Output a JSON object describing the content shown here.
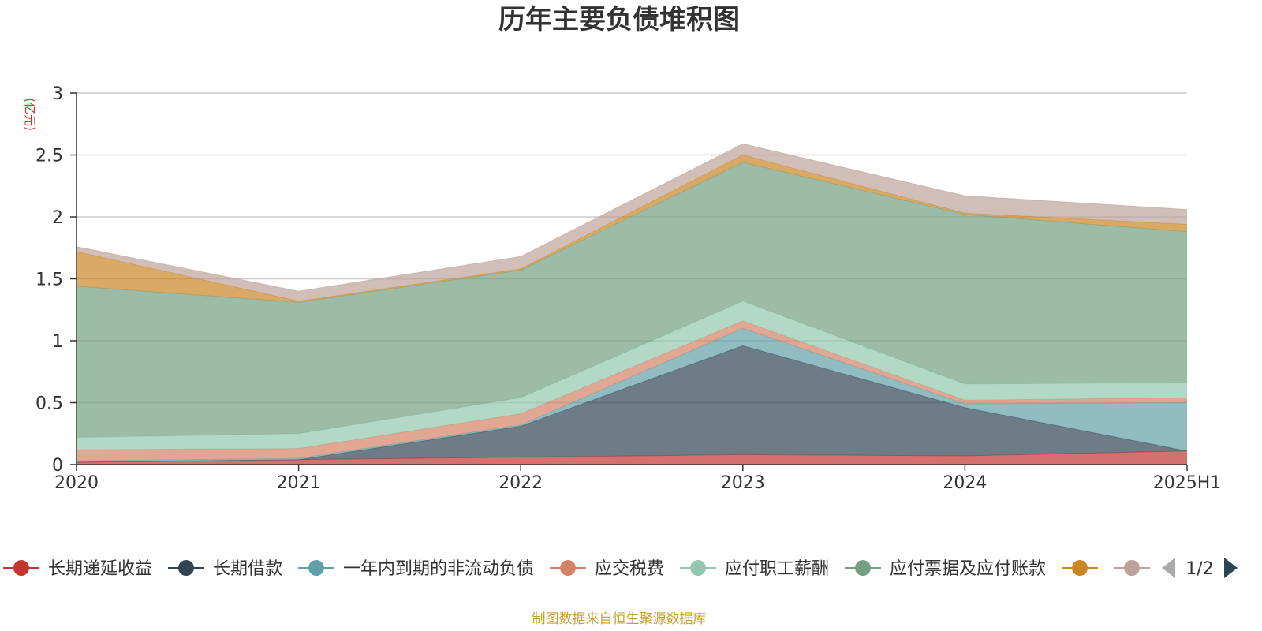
{
  "chart_data": {
    "type": "area",
    "title": "历年主要负债堆积图",
    "unit_label": "(亿元)",
    "x": [
      "2020",
      "2021",
      "2022",
      "2023",
      "2024",
      "2025H1"
    ],
    "ylim": [
      0,
      3
    ],
    "yticks": [
      "0",
      "0.5",
      "1",
      "1.5",
      "2",
      "2.5",
      "3"
    ],
    "grid": true,
    "stacked": true,
    "series": [
      {
        "name": "长期递延收益",
        "color": "#c23531",
        "values": [
          0.02,
          0.04,
          0.06,
          0.08,
          0.07,
          0.11
        ]
      },
      {
        "name": "长期借款",
        "color": "#2f4554",
        "values": [
          0.0,
          0.0,
          0.25,
          0.88,
          0.39,
          0.0
        ]
      },
      {
        "name": "一年内到期的非流动负债",
        "color": "#61a0a8",
        "values": [
          0.01,
          0.01,
          0.01,
          0.14,
          0.03,
          0.39
        ]
      },
      {
        "name": "应交税费",
        "color": "#d48265",
        "values": [
          0.09,
          0.08,
          0.09,
          0.06,
          0.03,
          0.04
        ]
      },
      {
        "name": "应付职工薪酬",
        "color": "#91c7ae",
        "values": [
          0.1,
          0.12,
          0.13,
          0.16,
          0.13,
          0.12
        ]
      },
      {
        "name": "应付票据及应付账款",
        "color": "#749f83",
        "values": [
          1.22,
          1.06,
          1.03,
          1.12,
          1.37,
          1.22
        ]
      },
      {
        "name": "",
        "color": "#ca8622",
        "values": [
          0.28,
          0.01,
          0.01,
          0.06,
          0.01,
          0.06
        ]
      },
      {
        "name": "",
        "color": "#bda29a",
        "values": [
          0.04,
          0.08,
          0.1,
          0.09,
          0.14,
          0.12
        ]
      }
    ],
    "legend": {
      "position": "bottom",
      "page": "1/2"
    },
    "source": "制图数据来自恒生聚源数据库"
  }
}
